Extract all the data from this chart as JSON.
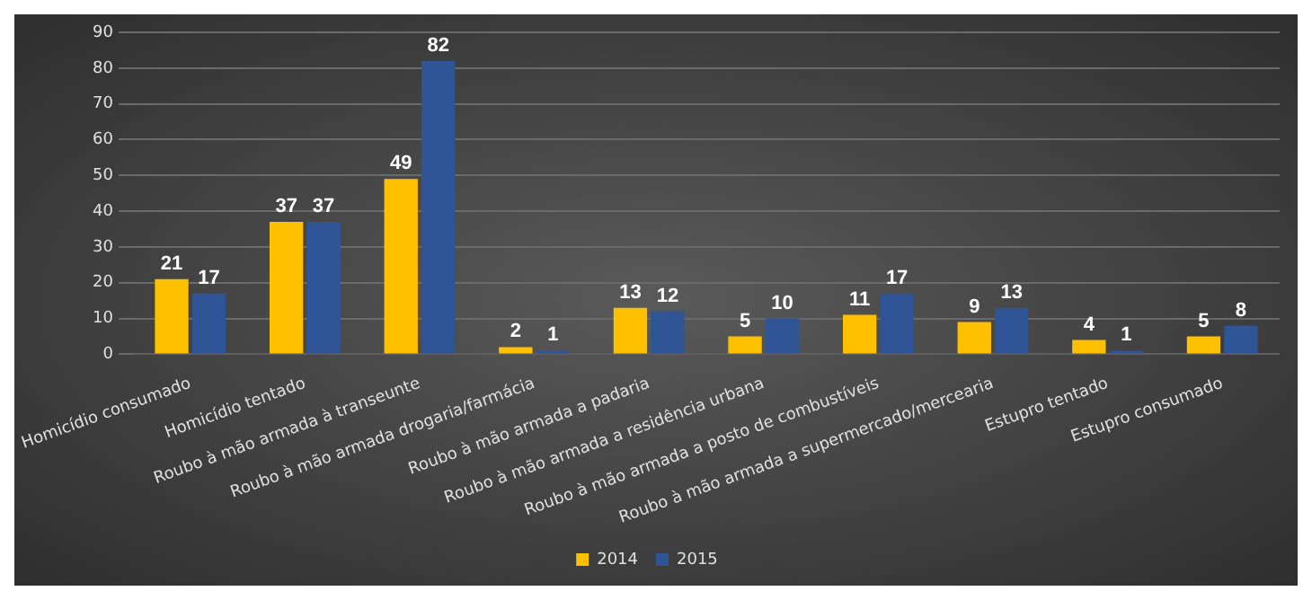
{
  "chart_data": {
    "type": "bar",
    "categories": [
      "Homicídio consumado",
      "Homicídio tentado",
      "Roubo à mão armada à transeunte",
      "Roubo à mão armada drogaria/farmácia",
      "Roubo à mão armada a padaria",
      "Roubo à mão armada a residência urbana",
      "Roubo à mão armada a posto de combustíveis",
      "Roubo à mão armada a supermercado/mercearia",
      "Estupro tentado",
      "Estupro consumado"
    ],
    "series": [
      {
        "name": "2014",
        "color": "#ffc000",
        "values": [
          21,
          37,
          49,
          2,
          13,
          5,
          11,
          9,
          4,
          5
        ]
      },
      {
        "name": "2015",
        "color": "#2f5597",
        "values": [
          17,
          37,
          82,
          1,
          12,
          10,
          17,
          13,
          1,
          8
        ]
      }
    ],
    "ylim": [
      0,
      90
    ],
    "yticks": [
      0,
      10,
      20,
      30,
      40,
      50,
      60,
      70,
      80,
      90
    ],
    "grid": "y",
    "legend": "bottom",
    "data_labels": true
  }
}
